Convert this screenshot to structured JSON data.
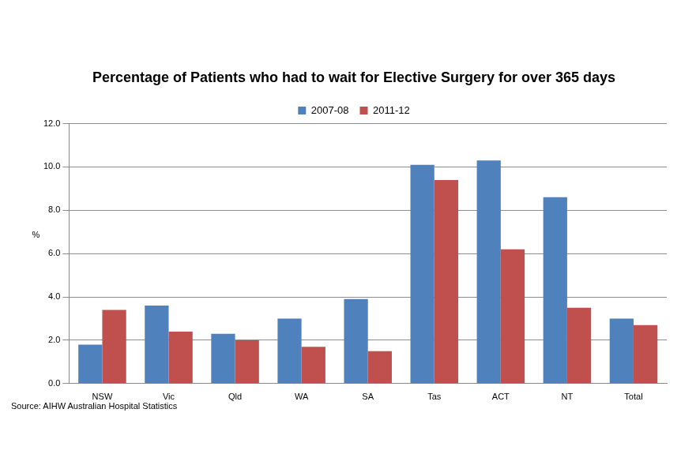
{
  "chart_data": {
    "type": "bar",
    "title": "Percentage of Patients who had to wait for Elective Surgery for over 365 days",
    "y_label": "%",
    "source": "Source: AIHW Australian Hospital Statistics",
    "categories": [
      "NSW",
      "Vic",
      "Qld",
      "WA",
      "SA",
      "Tas",
      "ACT",
      "NT",
      "Total"
    ],
    "series": [
      {
        "name": "2007-08",
        "color": "#4f81bd",
        "values": [
          1.8,
          3.6,
          2.3,
          3.0,
          3.9,
          10.1,
          10.3,
          8.6,
          3.0
        ]
      },
      {
        "name": "2011-12",
        "color": "#c0504d",
        "values": [
          3.4,
          2.4,
          2.0,
          1.7,
          1.5,
          9.4,
          6.2,
          3.5,
          2.7
        ]
      }
    ],
    "ylim": [
      0,
      12
    ],
    "yticks": [
      {
        "value": 0,
        "label": "0.0"
      },
      {
        "value": 2,
        "label": "2.0"
      },
      {
        "value": 4,
        "label": "4.0"
      },
      {
        "value": 6,
        "label": "6.0"
      },
      {
        "value": 8,
        "label": "8.0"
      },
      {
        "value": 10,
        "label": "10.0"
      },
      {
        "value": 12,
        "label": "12.0"
      }
    ],
    "grid": true,
    "legend": "top"
  }
}
